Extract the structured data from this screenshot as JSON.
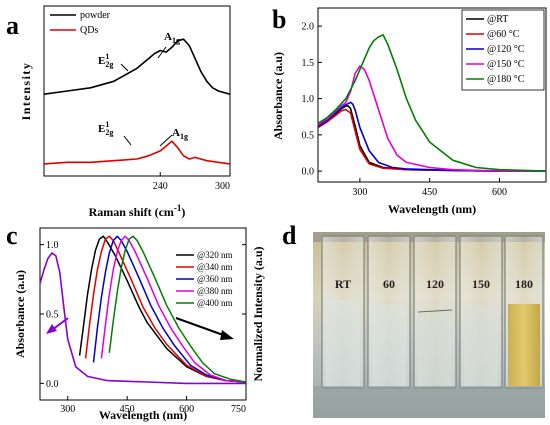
{
  "chart_data": [
    {
      "panel": "a",
      "type": "line",
      "xlabel": "Raman shift (cm",
      "xlabel_sup": "-1",
      "xlabel_close": ")",
      "ylabel": "Intensity",
      "xlim": [
        140,
        300
      ],
      "xticks": [
        240,
        300
      ],
      "ylim": [
        0,
        1
      ],
      "series": [
        {
          "name": "powder",
          "color": "#000000",
          "x": [
            140,
            160,
            180,
            200,
            210,
            220,
            230,
            235,
            240,
            245,
            250,
            255,
            260,
            265,
            270,
            275,
            280,
            285,
            290,
            300
          ],
          "y": [
            0.48,
            0.5,
            0.52,
            0.56,
            0.6,
            0.64,
            0.7,
            0.73,
            0.75,
            0.74,
            0.77,
            0.81,
            0.82,
            0.78,
            0.7,
            0.62,
            0.56,
            0.52,
            0.5,
            0.48
          ]
        },
        {
          "name": "QDs",
          "color": "#e00000",
          "x": [
            140,
            160,
            180,
            200,
            220,
            230,
            240,
            245,
            250,
            255,
            260,
            265,
            270,
            280,
            290,
            300
          ],
          "y": [
            0.05,
            0.06,
            0.06,
            0.07,
            0.08,
            0.1,
            0.13,
            0.16,
            0.19,
            0.15,
            0.1,
            0.08,
            0.09,
            0.07,
            0.06,
            0.05
          ]
        }
      ],
      "annotations": [
        {
          "text": "A",
          "sub": "1g"
        },
        {
          "text": "E",
          "sup": "1",
          "sub": "2g"
        },
        {
          "text": "E",
          "sup": "1",
          "sub": "2g"
        },
        {
          "text": "A",
          "sub": "1g"
        }
      ]
    },
    {
      "panel": "b",
      "type": "line",
      "xlabel": "Wavelength (nm)",
      "ylabel": "Absorbance (a.u)",
      "xlim": [
        210,
        700
      ],
      "xticks": [
        300,
        450,
        600
      ],
      "ylim": [
        -0.15,
        2.25
      ],
      "yticks": [
        0.0,
        0.5,
        1.0,
        1.5,
        2.0
      ],
      "yticklabels": [
        "0.0",
        "0.5",
        "1.0",
        "1.5",
        "2.0"
      ],
      "legend": "top-right",
      "series": [
        {
          "name": "@RT",
          "color": "#000000",
          "x": [
            210,
            230,
            250,
            260,
            270,
            275,
            280,
            290,
            300,
            320,
            350,
            400,
            500,
            600,
            700
          ],
          "y": [
            0.62,
            0.7,
            0.8,
            0.86,
            0.9,
            0.9,
            0.86,
            0.62,
            0.35,
            0.12,
            0.05,
            0.02,
            0.01,
            0.0,
            0.0
          ]
        },
        {
          "name": "@60 °C",
          "color": "#e00000",
          "x": [
            210,
            230,
            250,
            260,
            270,
            280,
            290,
            300,
            320,
            350,
            400,
            500,
            600,
            700
          ],
          "y": [
            0.6,
            0.68,
            0.78,
            0.83,
            0.85,
            0.8,
            0.55,
            0.3,
            0.1,
            0.04,
            0.02,
            0.01,
            0.0,
            0.0
          ]
        },
        {
          "name": "@120 °C",
          "color": "#0000cc",
          "x": [
            210,
            230,
            250,
            265,
            280,
            285,
            290,
            300,
            320,
            340,
            370,
            400,
            500,
            600,
            700
          ],
          "y": [
            0.62,
            0.7,
            0.82,
            0.9,
            0.95,
            0.92,
            0.84,
            0.6,
            0.28,
            0.12,
            0.05,
            0.03,
            0.01,
            0.0,
            0.0
          ]
        },
        {
          "name": "@150 °C",
          "color": "#e000e0",
          "x": [
            210,
            230,
            250,
            270,
            280,
            290,
            300,
            310,
            320,
            340,
            360,
            380,
            400,
            450,
            500,
            600,
            700
          ],
          "y": [
            0.64,
            0.72,
            0.84,
            0.95,
            1.1,
            1.35,
            1.45,
            1.4,
            1.25,
            0.85,
            0.45,
            0.22,
            0.12,
            0.05,
            0.02,
            0.0,
            0.0
          ]
        },
        {
          "name": "@180 °C",
          "color": "#008000",
          "x": [
            210,
            230,
            250,
            270,
            290,
            300,
            310,
            320,
            330,
            340,
            350,
            360,
            380,
            400,
            420,
            450,
            500,
            550,
            600,
            700
          ],
          "y": [
            0.66,
            0.74,
            0.86,
            1.0,
            1.25,
            1.4,
            1.55,
            1.7,
            1.8,
            1.85,
            1.88,
            1.75,
            1.4,
            1.0,
            0.7,
            0.4,
            0.15,
            0.05,
            0.02,
            0.0
          ]
        }
      ]
    },
    {
      "panel": "c",
      "type": "line",
      "xlabel": "Wavelength (nm)",
      "ylabel_left": "Absorbance (a.u)",
      "ylabel_right": "Normalized Intensity (a.u)",
      "xlim": [
        230,
        750
      ],
      "xticks": [
        300,
        450,
        600,
        750
      ],
      "ylim": [
        -0.12,
        1.12
      ],
      "yticks": [
        0.0,
        0.5,
        1.0
      ],
      "yticklabels": [
        "0.0",
        "0.5",
        "1.0"
      ],
      "legend": "top-right",
      "absorbance": {
        "color": "#8a00d4",
        "x": [
          230,
          240,
          250,
          260,
          270,
          280,
          290,
          300,
          320,
          350,
          400,
          500,
          600,
          750
        ],
        "y": [
          0.72,
          0.82,
          0.9,
          0.94,
          0.92,
          0.8,
          0.55,
          0.32,
          0.12,
          0.05,
          0.02,
          0.01,
          0.0,
          0.0
        ]
      },
      "series": [
        {
          "name": "@320 nm",
          "color": "#000000",
          "x": [
            330,
            340,
            350,
            360,
            370,
            380,
            390,
            400,
            420,
            450,
            480,
            500,
            550,
            600,
            650,
            700,
            750
          ],
          "y": [
            0.2,
            0.42,
            0.64,
            0.82,
            0.96,
            1.04,
            1.06,
            1.02,
            0.92,
            0.74,
            0.55,
            0.44,
            0.25,
            0.12,
            0.05,
            0.02,
            0.01
          ]
        },
        {
          "name": "@340 nm",
          "color": "#e00000",
          "x": [
            345,
            355,
            365,
            375,
            385,
            395,
            405,
            415,
            430,
            460,
            490,
            520,
            550,
            600,
            650,
            700,
            750
          ],
          "y": [
            0.18,
            0.42,
            0.64,
            0.82,
            0.95,
            1.04,
            1.06,
            1.03,
            0.94,
            0.75,
            0.55,
            0.4,
            0.28,
            0.13,
            0.05,
            0.02,
            0.01
          ]
        },
        {
          "name": "@360 nm",
          "color": "#0000cc",
          "x": [
            365,
            375,
            385,
            395,
            405,
            415,
            425,
            435,
            450,
            480,
            510,
            540,
            570,
            610,
            650,
            700,
            750
          ],
          "y": [
            0.15,
            0.4,
            0.62,
            0.8,
            0.94,
            1.03,
            1.06,
            1.03,
            0.95,
            0.76,
            0.56,
            0.4,
            0.27,
            0.13,
            0.06,
            0.02,
            0.01
          ]
        },
        {
          "name": "@380 nm",
          "color": "#e000e0",
          "x": [
            385,
            395,
            405,
            415,
            425,
            435,
            445,
            455,
            470,
            500,
            530,
            560,
            590,
            620,
            660,
            700,
            750
          ],
          "y": [
            0.18,
            0.42,
            0.64,
            0.82,
            0.95,
            1.03,
            1.06,
            1.03,
            0.95,
            0.76,
            0.56,
            0.4,
            0.27,
            0.15,
            0.06,
            0.02,
            0.01
          ]
        },
        {
          "name": "@400 nm",
          "color": "#008000",
          "x": [
            405,
            415,
            425,
            435,
            445,
            455,
            465,
            475,
            490,
            520,
            550,
            580,
            610,
            640,
            670,
            710,
            750
          ],
          "y": [
            0.22,
            0.45,
            0.66,
            0.83,
            0.96,
            1.04,
            1.06,
            1.03,
            0.95,
            0.76,
            0.56,
            0.4,
            0.27,
            0.15,
            0.07,
            0.03,
            0.01
          ]
        }
      ]
    },
    {
      "panel": "d",
      "type": "photo",
      "vial_labels": [
        "RT",
        "60",
        "120",
        "150",
        "180"
      ]
    }
  ]
}
